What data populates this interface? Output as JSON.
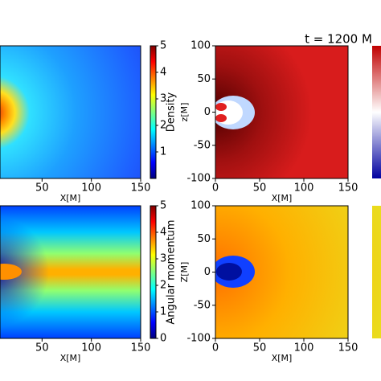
{
  "chart_data": [
    {
      "type": "heatmap",
      "x_label": "X[M]",
      "xlim": [
        0,
        150
      ],
      "xticks": [
        50,
        100,
        150
      ],
      "colorbar": {
        "label": "Density",
        "lim": [
          0,
          5
        ],
        "ticks": [
          1,
          2,
          3,
          4,
          5
        ]
      }
    },
    {
      "type": "heatmap",
      "title": "t = 1200 M",
      "x_label": "X[M]",
      "y_label": "z[M]",
      "xlim": [
        0,
        150
      ],
      "xticks": [
        0,
        50,
        100,
        150
      ],
      "ylim": [
        -100,
        100
      ],
      "yticks": [
        -100,
        -50,
        0,
        50,
        100
      ]
    },
    {
      "type": "heatmap",
      "x_label": "X[M]",
      "xlim": [
        0,
        150
      ],
      "xticks": [
        50,
        100,
        150
      ],
      "colorbar": {
        "label": "Angular momentum",
        "lim": [
          0,
          5
        ],
        "ticks": [
          0,
          1,
          2,
          3,
          4,
          5
        ]
      }
    },
    {
      "type": "heatmap",
      "x_label": "X[M]",
      "y_label": "Z[M]",
      "xlim": [
        0,
        150
      ],
      "xticks": [
        0,
        50,
        100,
        150
      ],
      "ylim": [
        -100,
        100
      ],
      "yticks": [
        -100,
        -50,
        0,
        50,
        100
      ]
    }
  ]
}
